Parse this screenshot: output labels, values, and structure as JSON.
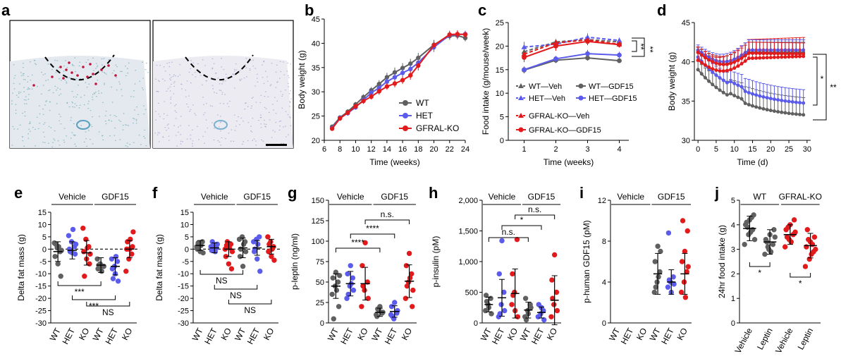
{
  "figure": {
    "panel_labels": [
      "a",
      "b",
      "c",
      "d",
      "e",
      "f",
      "g",
      "h",
      "i",
      "j"
    ]
  },
  "colors": {
    "wt": "#606060",
    "het": "#5b5bec",
    "ko": "#e31a1c",
    "tissue_bg": "#e3e9ee",
    "tissue_cells": "#6aa6b8",
    "stain": "#c0143c"
  },
  "panel_a": {
    "type": "micrograph",
    "content": "two histology sections with dashed outline, scale bar"
  },
  "chart_data": [
    {
      "panel": "b",
      "type": "line",
      "xlabel": "Time (weeks)",
      "ylabel": "Body weight (g)",
      "xlim": [
        6,
        24
      ],
      "ylim": [
        20,
        45
      ],
      "xticks": [
        6,
        8,
        10,
        12,
        14,
        16,
        18,
        20,
        22,
        24
      ],
      "yticks": [
        20,
        25,
        30,
        35,
        40,
        45
      ],
      "legend": [
        "WT",
        "HET",
        "GFRAL-KO"
      ],
      "legend_position": "lower-right",
      "series": [
        {
          "name": "WT",
          "color": "#606060",
          "x": [
            7,
            8,
            9,
            10,
            11,
            12,
            13,
            14,
            15,
            16,
            17,
            18,
            20,
            22,
            23,
            24
          ],
          "y": [
            22.8,
            24.7,
            25.9,
            27.4,
            28.9,
            30.3,
            31.6,
            33.0,
            34.0,
            34.9,
            35.8,
            37.0,
            39.7,
            41.5,
            41.6,
            41.1
          ],
          "err": [
            0.4,
            0.4,
            0.5,
            0.5,
            0.6,
            0.7,
            0.8,
            0.9,
            1.0,
            1.0,
            1.0,
            1.0,
            1.0,
            0.8,
            0.8,
            0.7
          ]
        },
        {
          "name": "HET",
          "color": "#5b5bec",
          "x": [
            7,
            8,
            9,
            10,
            11,
            12,
            13,
            14,
            15,
            16,
            17,
            18,
            20,
            22,
            23,
            24
          ],
          "y": [
            22.5,
            24.6,
            25.6,
            26.8,
            28.3,
            29.8,
            30.8,
            32.1,
            33.0,
            33.9,
            34.7,
            36.0,
            39.2,
            41.7,
            41.8,
            41.9
          ],
          "err": [
            0.4,
            0.4,
            0.5,
            0.5,
            0.6,
            0.6,
            0.7,
            0.8,
            0.8,
            0.9,
            0.9,
            1.0,
            1.0,
            0.8,
            0.8,
            0.7
          ]
        },
        {
          "name": "GFRAL-KO",
          "color": "#e31a1c",
          "x": [
            7,
            8,
            9,
            10,
            11,
            12,
            13,
            14,
            15,
            16,
            17,
            18,
            20,
            22,
            23,
            24
          ],
          "y": [
            22.4,
            24.5,
            25.7,
            27.0,
            28.1,
            29.0,
            30.1,
            31.1,
            31.7,
            32.4,
            33.4,
            35.4,
            39.6,
            41.8,
            41.9,
            41.8
          ],
          "err": [
            0.4,
            0.4,
            0.5,
            0.5,
            0.6,
            0.6,
            0.7,
            0.7,
            0.8,
            0.8,
            0.9,
            1.0,
            1.0,
            0.8,
            0.8,
            0.7
          ]
        }
      ]
    },
    {
      "panel": "c",
      "type": "line",
      "xlabel": "Time (weeks)",
      "ylabel": "Food intake (g/mouse/week)",
      "xlim": [
        0.5,
        4.3
      ],
      "ylim": [
        0,
        25
      ],
      "xticks": [
        1,
        2,
        3,
        4
      ],
      "yticks": [
        0,
        5,
        10,
        15,
        20,
        25
      ],
      "significance": [
        "**",
        "**"
      ],
      "legend_position": "bottom",
      "series": [
        {
          "name": "WT—Veh",
          "color": "#606060",
          "dashed": true,
          "marker": "triangle",
          "x": [
            1,
            2,
            3,
            4
          ],
          "y": [
            18.8,
            20.9,
            21.4,
            20.9
          ],
          "err": [
            0.8,
            0.6,
            0.8,
            0.6
          ]
        },
        {
          "name": "HET—Veh",
          "color": "#5b5bec",
          "dashed": true,
          "marker": "triangle",
          "x": [
            1,
            2,
            3,
            4
          ],
          "y": [
            19.8,
            20.4,
            21.9,
            21.2
          ],
          "err": [
            1.1,
            0.6,
            0.8,
            0.6
          ]
        },
        {
          "name": "GFRAL-KO—Veh",
          "color": "#e31a1c",
          "dashed": true,
          "marker": "triangle",
          "x": [
            1,
            2,
            3,
            4
          ],
          "y": [
            18.3,
            20.7,
            21.3,
            20.4
          ],
          "err": [
            0.9,
            0.6,
            0.7,
            0.6
          ]
        },
        {
          "name": "WT—GDF15",
          "color": "#606060",
          "dashed": false,
          "marker": "circle",
          "x": [
            1,
            2,
            3,
            4
          ],
          "y": [
            14.9,
            17.0,
            17.5,
            16.9
          ],
          "err": [
            0.7,
            0.6,
            0.6,
            0.5
          ]
        },
        {
          "name": "HET—GDF15",
          "color": "#5b5bec",
          "dashed": false,
          "marker": "circle",
          "x": [
            1,
            2,
            3,
            4
          ],
          "y": [
            15.0,
            17.3,
            18.4,
            18.1
          ],
          "err": [
            0.7,
            0.6,
            0.8,
            0.7
          ]
        },
        {
          "name": "GFRAL-KO—GDF15",
          "color": "#e31a1c",
          "dashed": false,
          "marker": "circle",
          "x": [
            1,
            2,
            3,
            4
          ],
          "y": [
            17.6,
            20.0,
            21.0,
            20.3
          ],
          "err": [
            1.0,
            1.0,
            0.8,
            0.6
          ]
        }
      ]
    },
    {
      "panel": "d",
      "type": "line",
      "xlabel": "Time (d)",
      "ylabel": "Body weight (g)",
      "xlim": [
        -1,
        31
      ],
      "ylim": [
        30,
        45
      ],
      "xticks": [
        0,
        5,
        10,
        15,
        20,
        25,
        30
      ],
      "yticks": [
        30,
        35,
        40,
        45
      ],
      "significance": [
        "*",
        "**"
      ],
      "series": [
        {
          "name": "WT—GDF15",
          "color": "#606060",
          "start": 39.0,
          "end": 32.8,
          "shape": "decay",
          "err": 2.2
        },
        {
          "name": "HET—GDF15",
          "color": "#5b5bec",
          "start": 40.6,
          "end": 34.3,
          "shape": "decay",
          "err": 1.7
        },
        {
          "name": "GFRAL-KO—GDF15",
          "color": "#e31a1c",
          "start": 40.2,
          "end": 40.7,
          "shape": "dip",
          "err": 2.4
        },
        {
          "name": "WT—Veh",
          "color": "#606060",
          "start": 41.2,
          "end": 41.2,
          "shape": "dip",
          "err": 1.3
        },
        {
          "name": "HET—Veh",
          "color": "#5b5bec",
          "start": 41.5,
          "end": 41.5,
          "shape": "dip",
          "err": 1.3
        },
        {
          "name": "GFRAL-KO—Veh",
          "color": "#e31a1c",
          "start": 41.2,
          "end": 41.0,
          "shape": "dip",
          "err": 1.4
        }
      ]
    },
    {
      "panel": "e",
      "type": "scatter",
      "ylabel": "Delta fat mass (g)",
      "ylim": [
        -30,
        15
      ],
      "yticks": [
        -30,
        -25,
        -20,
        -15,
        -10,
        -5,
        0,
        5,
        10,
        15
      ],
      "group_labels": [
        "Vehicle",
        "GDF15"
      ],
      "categories": [
        "WT",
        "HET",
        "KO",
        "WT",
        "HET",
        "KO"
      ],
      "means": [
        -1.0,
        -0.5,
        -1.5,
        -6.5,
        -7.0,
        0.0
      ],
      "sd": [
        4.0,
        3.5,
        5.0,
        3.0,
        3.5,
        3.5
      ],
      "points": [
        [
          2.5,
          0.5,
          -1,
          -3,
          -6,
          -11,
          2,
          1,
          -0.5
        ],
        [
          5.5,
          3,
          1,
          0,
          -1.5,
          -2,
          -1,
          8,
          2
        ],
        [
          8.5,
          4,
          1,
          -1,
          -4,
          -6,
          -11,
          0.5,
          -2
        ],
        [
          -4,
          -6,
          -7,
          -8,
          -6.5,
          -7,
          -6.5,
          -9
        ],
        [
          -4,
          -7,
          -5,
          -8,
          -10,
          -13,
          -12,
          -3
        ],
        [
          -9,
          -4,
          -2,
          0,
          0,
          1,
          3,
          4,
          7
        ]
      ],
      "zero_line": true,
      "comparisons": [
        {
          "a": 0,
          "b": 3,
          "label": "***"
        },
        {
          "a": 1,
          "b": 4,
          "label": "***"
        },
        {
          "a": 2,
          "b": 5,
          "label": "NS"
        }
      ]
    },
    {
      "panel": "f",
      "type": "scatter",
      "ylabel": "Delta fat mass (g)",
      "ylim": [
        -30,
        15
      ],
      "yticks": [
        -30,
        -25,
        -20,
        -15,
        -10,
        -5,
        0,
        5,
        10,
        15
      ],
      "group_labels": [
        "Vehicle",
        "GDF15"
      ],
      "categories": [
        "WT",
        "HET",
        "KO",
        "WT",
        "HET",
        "KO"
      ],
      "means": [
        1.5,
        0.5,
        0.0,
        0.5,
        0.5,
        1.0
      ],
      "sd": [
        2.0,
        2.0,
        3.0,
        4.0,
        3.0,
        3.0
      ],
      "points": [
        [
          1,
          2,
          3,
          0,
          -1,
          -1.5,
          2.5,
          1.5
        ],
        [
          1,
          2,
          0.5,
          -0.5,
          1.5,
          2,
          3,
          -1
        ],
        [
          0,
          1,
          2,
          -3,
          -6,
          -8,
          1.5,
          0.5,
          -1,
          3
        ],
        [
          4,
          5,
          3,
          -3,
          -7,
          -1,
          0,
          2
        ],
        [
          3,
          4,
          5,
          -1,
          -4,
          -9,
          0,
          2
        ],
        [
          5,
          3,
          1,
          -1,
          -3,
          -4.5,
          2,
          0
        ]
      ],
      "zero_line": true,
      "comparisons": [
        {
          "a": 0,
          "b": 3,
          "label": "NS"
        },
        {
          "a": 1,
          "b": 4,
          "label": "NS"
        },
        {
          "a": 2,
          "b": 5,
          "label": "NS"
        }
      ]
    },
    {
      "panel": "g",
      "type": "scatter",
      "ylabel": "p-leptin (ng/ml)",
      "ylim": [
        0,
        150
      ],
      "yticks": [
        0,
        25,
        50,
        75,
        100,
        125,
        150
      ],
      "group_labels": [
        "Vehicle",
        "GDF15"
      ],
      "categories": [
        "WT",
        "HET",
        "KO",
        "WT",
        "HET",
        "KO"
      ],
      "means": [
        45,
        48,
        48,
        13,
        14,
        51
      ],
      "sd": [
        15,
        15,
        20,
        5,
        7,
        20
      ],
      "points": [
        [
          35,
          45,
          50,
          55,
          62,
          20,
          5,
          40,
          58
        ],
        [
          30,
          45,
          55,
          60,
          70,
          40,
          35,
          48
        ],
        [
          20,
          40,
          50,
          70,
          98,
          30,
          45
        ],
        [
          10,
          15,
          12,
          8,
          20,
          13,
          17
        ],
        [
          10,
          5,
          12,
          20,
          25,
          15,
          8
        ],
        [
          30,
          50,
          60,
          70,
          85,
          20,
          45,
          55,
          40
        ]
      ],
      "comparisons": [
        {
          "a": 0,
          "b": 3,
          "label": "****"
        },
        {
          "a": 1,
          "b": 4,
          "label": "****"
        },
        {
          "a": 2,
          "b": 5,
          "label": "n.s."
        }
      ]
    },
    {
      "panel": "h",
      "type": "scatter",
      "ylabel": "p-insulin (pM)",
      "ylim": [
        0,
        2000
      ],
      "yticks": [
        0,
        500,
        1000,
        1500,
        2000
      ],
      "yticklabels": [
        "0",
        "500",
        "1,000",
        "1,500",
        "2,000"
      ],
      "group_labels": [
        "Vehicle",
        "GDF15"
      ],
      "categories": [
        "WT",
        "HET",
        "KO",
        "WT",
        "HET",
        "KO"
      ],
      "means": [
        300,
        410,
        480,
        210,
        170,
        370
      ],
      "sd": [
        120,
        300,
        400,
        130,
        90,
        400
      ],
      "points": [
        [
          200,
          300,
          400,
          450,
          250,
          150,
          350
        ],
        [
          100,
          300,
          500,
          800,
          1340,
          200,
          150
        ],
        [
          300,
          500,
          1360,
          800,
          200,
          100,
          450
        ],
        [
          100,
          200,
          300,
          400,
          150,
          250,
          50
        ],
        [
          100,
          150,
          200,
          300,
          250,
          50
        ],
        [
          100,
          300,
          500,
          700,
          1110,
          200,
          400
        ]
      ],
      "comparisons": [
        {
          "a": 0,
          "b": 3,
          "label": "n.s."
        },
        {
          "a": 1,
          "b": 4,
          "label": "*"
        },
        {
          "a": 2,
          "b": 5,
          "label": "n.s."
        }
      ]
    },
    {
      "panel": "i",
      "type": "scatter",
      "ylabel": "p-human GDF15 (pM)",
      "ylim": [
        0,
        12
      ],
      "yticks": [
        0,
        4,
        8,
        12
      ],
      "group_labels": [
        "Vehicle",
        "GDF15"
      ],
      "categories": [
        "WT",
        "HET",
        "KO",
        "WT",
        "HET",
        "KO"
      ],
      "means": [
        null,
        null,
        null,
        4.8,
        4.0,
        4.8
      ],
      "sd": [
        null,
        null,
        null,
        2.0,
        1.2,
        2.0
      ],
      "points": [
        [],
        [],
        [],
        [
          3,
          4,
          5,
          6,
          7.5,
          7,
          3.5,
          4.5
        ],
        [
          3.5,
          4,
          4.5,
          8.8,
          3,
          3.8,
          4.2
        ],
        [
          3,
          4,
          5,
          6,
          7,
          9,
          10,
          2.5,
          5.5
        ]
      ]
    },
    {
      "panel": "j",
      "type": "scatter",
      "ylabel": "24hr food intake (g)",
      "ylim": [
        0,
        5
      ],
      "yticks": [
        0,
        1,
        2,
        3,
        4,
        5
      ],
      "group_labels": [
        "WT",
        "GFRAL-KO"
      ],
      "categories": [
        "Vehicle",
        "Leptin",
        "Vehicle",
        "Leptin"
      ],
      "means": [
        3.85,
        3.3,
        3.6,
        3.15
      ],
      "sd": [
        0.5,
        0.5,
        0.4,
        0.5
      ],
      "points": [
        [
          3.2,
          3.6,
          3.8,
          4.0,
          4.2,
          4.4,
          4.1,
          3.7,
          3.4,
          3.9,
          4.3
        ],
        [
          2.8,
          3.0,
          3.2,
          3.4,
          3.6,
          3.8,
          3.3,
          2.9,
          3.5,
          3.1
        ],
        [
          3.1,
          3.4,
          3.6,
          3.8,
          4.0,
          4.2,
          3.5,
          3.3,
          3.7,
          3.9
        ],
        [
          2.3,
          2.6,
          2.9,
          3.1,
          3.3,
          3.5,
          3.8,
          2.8,
          3.0,
          3.4,
          3.2
        ]
      ],
      "comparisons": [
        {
          "a": 0,
          "b": 1,
          "label": "*"
        },
        {
          "a": 2,
          "b": 3,
          "label": "*"
        }
      ]
    }
  ]
}
